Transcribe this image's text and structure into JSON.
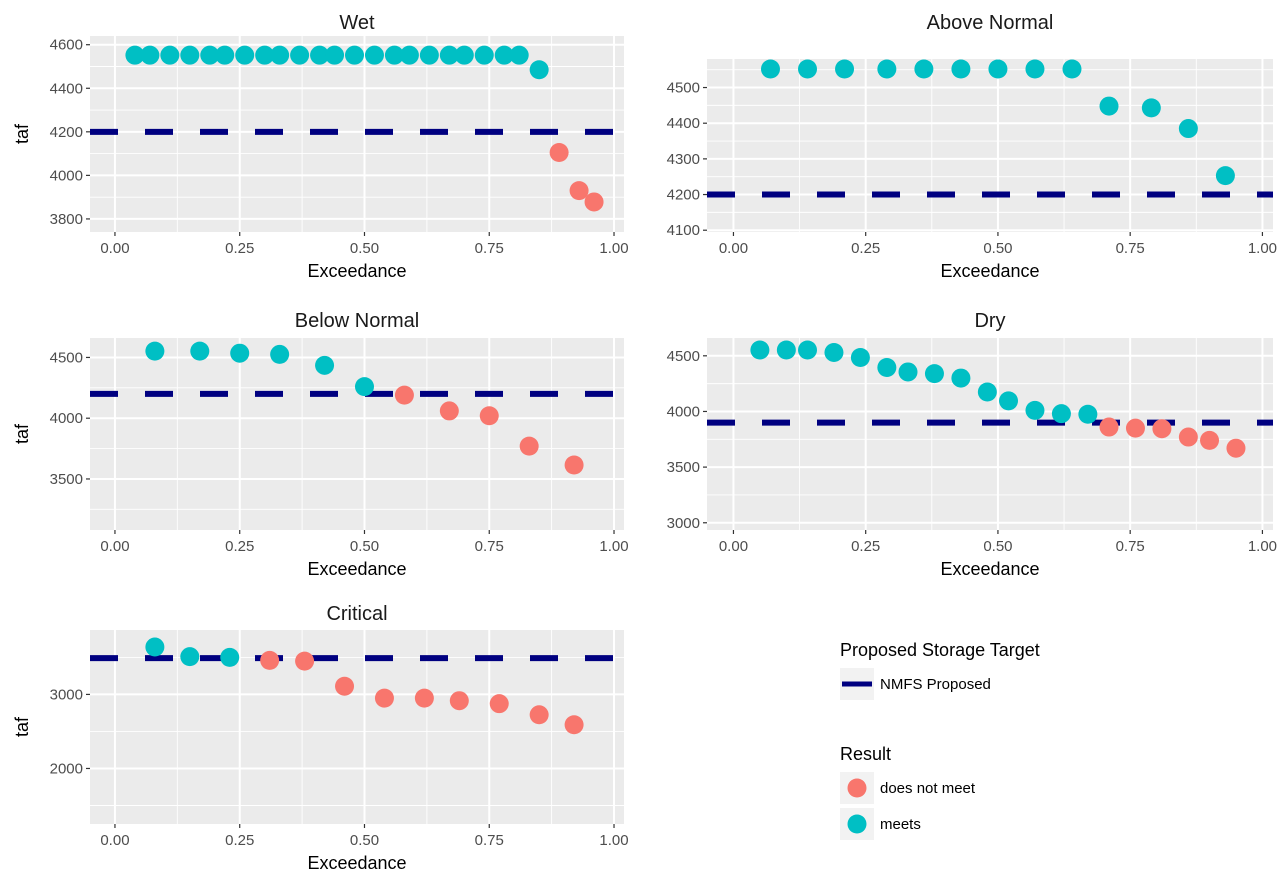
{
  "colors": {
    "meets": "#00BFC4",
    "does_not_meet": "#F8766D",
    "target_line": "#000080",
    "panel_bg": "#EBEBEB",
    "grid": "#FFFFFF"
  },
  "legend": {
    "line_title": "Proposed Storage Target",
    "line_label": "NMFS Proposed",
    "result_title": "Result",
    "items": [
      {
        "key": "does_not_meet",
        "label": "does not meet"
      },
      {
        "key": "meets",
        "label": "meets"
      }
    ]
  },
  "chart_data": [
    {
      "type": "scatter",
      "title": "Wet",
      "xlabel": "Exceedance",
      "ylabel": "taf",
      "xlim": [
        -0.05,
        1.02
      ],
      "ylim": [
        3740,
        4640
      ],
      "xticks": [
        0,
        0.25,
        0.5,
        0.75,
        1
      ],
      "xtick_labels": [
        "0.00",
        "0.25",
        "0.50",
        "0.75",
        "1.00"
      ],
      "yticks": [
        3800,
        4000,
        4200,
        4400,
        4600
      ],
      "ytick_labels": [
        "3800",
        "4000",
        "4200",
        "4400",
        "4600"
      ],
      "target": 4200,
      "points": [
        {
          "x": 0.04,
          "y": 4552,
          "result": "meets"
        },
        {
          "x": 0.07,
          "y": 4552,
          "result": "meets"
        },
        {
          "x": 0.11,
          "y": 4552,
          "result": "meets"
        },
        {
          "x": 0.15,
          "y": 4552,
          "result": "meets"
        },
        {
          "x": 0.19,
          "y": 4552,
          "result": "meets"
        },
        {
          "x": 0.22,
          "y": 4552,
          "result": "meets"
        },
        {
          "x": 0.26,
          "y": 4552,
          "result": "meets"
        },
        {
          "x": 0.3,
          "y": 4552,
          "result": "meets"
        },
        {
          "x": 0.33,
          "y": 4552,
          "result": "meets"
        },
        {
          "x": 0.37,
          "y": 4552,
          "result": "meets"
        },
        {
          "x": 0.41,
          "y": 4552,
          "result": "meets"
        },
        {
          "x": 0.44,
          "y": 4552,
          "result": "meets"
        },
        {
          "x": 0.48,
          "y": 4552,
          "result": "meets"
        },
        {
          "x": 0.52,
          "y": 4552,
          "result": "meets"
        },
        {
          "x": 0.56,
          "y": 4552,
          "result": "meets"
        },
        {
          "x": 0.59,
          "y": 4552,
          "result": "meets"
        },
        {
          "x": 0.63,
          "y": 4552,
          "result": "meets"
        },
        {
          "x": 0.67,
          "y": 4552,
          "result": "meets"
        },
        {
          "x": 0.7,
          "y": 4552,
          "result": "meets"
        },
        {
          "x": 0.74,
          "y": 4552,
          "result": "meets"
        },
        {
          "x": 0.78,
          "y": 4552,
          "result": "meets"
        },
        {
          "x": 0.81,
          "y": 4552,
          "result": "meets"
        },
        {
          "x": 0.85,
          "y": 4485,
          "result": "meets"
        },
        {
          "x": 0.89,
          "y": 4105,
          "result": "does_not_meet"
        },
        {
          "x": 0.93,
          "y": 3930,
          "result": "does_not_meet"
        },
        {
          "x": 0.96,
          "y": 3878,
          "result": "does_not_meet"
        }
      ]
    },
    {
      "type": "scatter",
      "title": "Above Normal",
      "xlabel": "Exceedance",
      "ylabel": "",
      "xlim": [
        -0.05,
        1.02
      ],
      "ylim": [
        4095,
        4580
      ],
      "xticks": [
        0,
        0.25,
        0.5,
        0.75,
        1
      ],
      "xtick_labels": [
        "0.00",
        "0.25",
        "0.50",
        "0.75",
        "1.00"
      ],
      "yticks": [
        4100,
        4200,
        4300,
        4400,
        4500
      ],
      "ytick_labels": [
        "4100",
        "4200",
        "4300",
        "4400",
        "4500"
      ],
      "target": 4200,
      "points": [
        {
          "x": 0.07,
          "y": 4552,
          "result": "meets"
        },
        {
          "x": 0.14,
          "y": 4552,
          "result": "meets"
        },
        {
          "x": 0.21,
          "y": 4552,
          "result": "meets"
        },
        {
          "x": 0.29,
          "y": 4552,
          "result": "meets"
        },
        {
          "x": 0.36,
          "y": 4552,
          "result": "meets"
        },
        {
          "x": 0.43,
          "y": 4552,
          "result": "meets"
        },
        {
          "x": 0.5,
          "y": 4552,
          "result": "meets"
        },
        {
          "x": 0.57,
          "y": 4552,
          "result": "meets"
        },
        {
          "x": 0.64,
          "y": 4552,
          "result": "meets"
        },
        {
          "x": 0.71,
          "y": 4448,
          "result": "meets"
        },
        {
          "x": 0.79,
          "y": 4443,
          "result": "meets"
        },
        {
          "x": 0.86,
          "y": 4385,
          "result": "meets"
        },
        {
          "x": 0.93,
          "y": 4253,
          "result": "meets"
        }
      ]
    },
    {
      "type": "scatter",
      "title": "Below Normal",
      "xlabel": "Exceedance",
      "ylabel": "taf",
      "xlim": [
        -0.05,
        1.02
      ],
      "ylim": [
        3080,
        4660
      ],
      "xticks": [
        0,
        0.25,
        0.5,
        0.75,
        1
      ],
      "xtick_labels": [
        "0.00",
        "0.25",
        "0.50",
        "0.75",
        "1.00"
      ],
      "yticks": [
        3500,
        4000,
        4500
      ],
      "ytick_labels": [
        "3500",
        "4000",
        "4500"
      ],
      "target": 4200,
      "points": [
        {
          "x": 0.08,
          "y": 4552,
          "result": "meets"
        },
        {
          "x": 0.17,
          "y": 4552,
          "result": "meets"
        },
        {
          "x": 0.25,
          "y": 4535,
          "result": "meets"
        },
        {
          "x": 0.33,
          "y": 4525,
          "result": "meets"
        },
        {
          "x": 0.42,
          "y": 4435,
          "result": "meets"
        },
        {
          "x": 0.5,
          "y": 4260,
          "result": "meets"
        },
        {
          "x": 0.58,
          "y": 4190,
          "result": "does_not_meet"
        },
        {
          "x": 0.67,
          "y": 4060,
          "result": "does_not_meet"
        },
        {
          "x": 0.75,
          "y": 4020,
          "result": "does_not_meet"
        },
        {
          "x": 0.83,
          "y": 3770,
          "result": "does_not_meet"
        },
        {
          "x": 0.92,
          "y": 3615,
          "result": "does_not_meet"
        }
      ]
    },
    {
      "type": "scatter",
      "title": "Dry",
      "xlabel": "Exceedance",
      "ylabel": "",
      "xlim": [
        -0.05,
        1.02
      ],
      "ylim": [
        2935,
        4660
      ],
      "xticks": [
        0,
        0.25,
        0.5,
        0.75,
        1
      ],
      "xtick_labels": [
        "0.00",
        "0.25",
        "0.50",
        "0.75",
        "1.00"
      ],
      "yticks": [
        3000,
        3500,
        4000,
        4500
      ],
      "ytick_labels": [
        "3000",
        "3500",
        "4000",
        "4500"
      ],
      "target": 3900,
      "points": [
        {
          "x": 0.05,
          "y": 4552,
          "result": "meets"
        },
        {
          "x": 0.1,
          "y": 4552,
          "result": "meets"
        },
        {
          "x": 0.14,
          "y": 4552,
          "result": "meets"
        },
        {
          "x": 0.19,
          "y": 4530,
          "result": "meets"
        },
        {
          "x": 0.24,
          "y": 4485,
          "result": "meets"
        },
        {
          "x": 0.29,
          "y": 4395,
          "result": "meets"
        },
        {
          "x": 0.33,
          "y": 4355,
          "result": "meets"
        },
        {
          "x": 0.38,
          "y": 4340,
          "result": "meets"
        },
        {
          "x": 0.43,
          "y": 4300,
          "result": "meets"
        },
        {
          "x": 0.48,
          "y": 4175,
          "result": "meets"
        },
        {
          "x": 0.52,
          "y": 4095,
          "result": "meets"
        },
        {
          "x": 0.57,
          "y": 4010,
          "result": "meets"
        },
        {
          "x": 0.62,
          "y": 3980,
          "result": "meets"
        },
        {
          "x": 0.67,
          "y": 3975,
          "result": "meets"
        },
        {
          "x": 0.71,
          "y": 3860,
          "result": "does_not_meet"
        },
        {
          "x": 0.76,
          "y": 3850,
          "result": "does_not_meet"
        },
        {
          "x": 0.81,
          "y": 3845,
          "result": "does_not_meet"
        },
        {
          "x": 0.86,
          "y": 3770,
          "result": "does_not_meet"
        },
        {
          "x": 0.9,
          "y": 3740,
          "result": "does_not_meet"
        },
        {
          "x": 0.95,
          "y": 3670,
          "result": "does_not_meet"
        }
      ]
    },
    {
      "type": "scatter",
      "title": "Critical",
      "xlabel": "Exceedance",
      "ylabel": "taf",
      "xlim": [
        -0.05,
        1.02
      ],
      "ylim": [
        1250,
        3870
      ],
      "xticks": [
        0,
        0.25,
        0.5,
        0.75,
        1
      ],
      "xtick_labels": [
        "0.00",
        "0.25",
        "0.50",
        "0.75",
        "1.00"
      ],
      "yticks": [
        2000,
        3000
      ],
      "ytick_labels": [
        "2000",
        "3000"
      ],
      "target": 3490,
      "points": [
        {
          "x": 0.08,
          "y": 3640,
          "result": "meets"
        },
        {
          "x": 0.15,
          "y": 3510,
          "result": "meets"
        },
        {
          "x": 0.23,
          "y": 3500,
          "result": "meets"
        },
        {
          "x": 0.31,
          "y": 3460,
          "result": "does_not_meet"
        },
        {
          "x": 0.38,
          "y": 3450,
          "result": "does_not_meet"
        },
        {
          "x": 0.46,
          "y": 3110,
          "result": "does_not_meet"
        },
        {
          "x": 0.54,
          "y": 2950,
          "result": "does_not_meet"
        },
        {
          "x": 0.62,
          "y": 2950,
          "result": "does_not_meet"
        },
        {
          "x": 0.69,
          "y": 2915,
          "result": "does_not_meet"
        },
        {
          "x": 0.77,
          "y": 2875,
          "result": "does_not_meet"
        },
        {
          "x": 0.85,
          "y": 2725,
          "result": "does_not_meet"
        },
        {
          "x": 0.92,
          "y": 2590,
          "result": "does_not_meet"
        }
      ]
    }
  ]
}
